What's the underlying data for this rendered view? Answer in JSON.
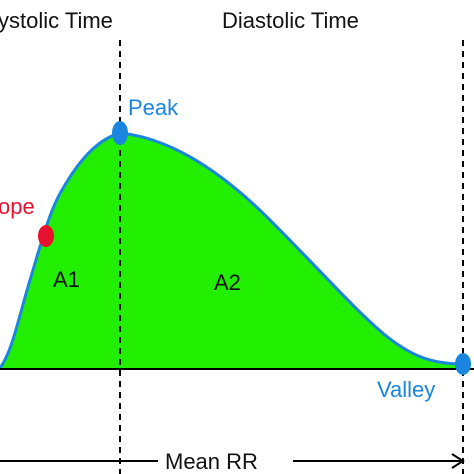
{
  "labels": {
    "systolic_time": "ystolic Time",
    "diastolic_time": "Diastolic Time",
    "peak": "Peak",
    "slope": "ope",
    "area_1": "A1",
    "area_2": "A2",
    "valley": "Valley",
    "mean_rr": "Mean RR"
  },
  "colors": {
    "fill": "#22ee00",
    "curve": "#1a86e0",
    "peak_point": "#1a86e0",
    "valley_point": "#1a86e0",
    "slope_point": "#e8112d",
    "label_blue": "#1a86e0",
    "label_red": "#e8112d",
    "text": "#111111"
  }
}
